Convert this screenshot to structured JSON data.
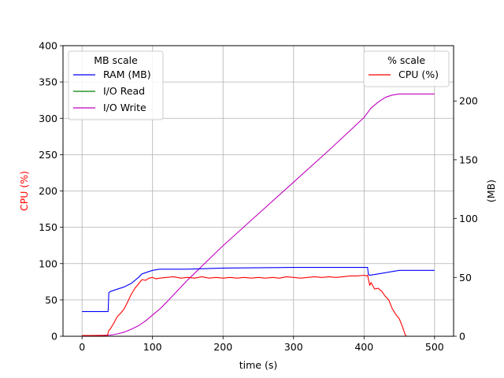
{
  "chart_data": {
    "type": "line",
    "title": "",
    "xlabel": "time (s)",
    "ylabel_left": "CPU (%)",
    "ylabel_right": "(MB)",
    "xlim": [
      -27,
      527
    ],
    "ylim_left": [
      0,
      400
    ],
    "ylim_right": [
      0,
      247
    ],
    "x_ticks": [
      0,
      100,
      200,
      300,
      400,
      500
    ],
    "y_left_ticks": [
      0,
      50,
      100,
      150,
      200,
      250,
      300,
      350,
      400
    ],
    "y_right_ticks": [
      0,
      50,
      100,
      150,
      200
    ],
    "grid": true,
    "colors": {
      "ram": "#0000ff",
      "io_read": "#008000",
      "io_write": "#bf00bf",
      "cpu": "#ff0000",
      "cpu_axis_label": "#ff0000"
    },
    "legends": [
      {
        "title": "MB scale",
        "placement": "upper-left",
        "entries": [
          {
            "label": "RAM (MB)",
            "series": "ram"
          },
          {
            "label": "I/O Read",
            "series": "io_read"
          },
          {
            "label": "I/O Write",
            "series": "io_write"
          }
        ]
      },
      {
        "title": "% scale",
        "placement": "upper-right",
        "entries": [
          {
            "label": "CPU (%)",
            "series": "cpu"
          }
        ]
      }
    ],
    "series": [
      {
        "name": "RAM (MB)",
        "key": "ram",
        "axis": "right",
        "x": [
          0,
          37,
          38,
          40,
          50,
          60,
          70,
          80,
          85,
          90,
          95,
          100,
          105,
          110,
          120,
          150,
          200,
          300,
          400,
          405,
          406,
          407,
          410,
          420,
          430,
          440,
          450,
          460,
          500
        ],
        "y": [
          21,
          21,
          37,
          38,
          40,
          42,
          45,
          50,
          53,
          54,
          55,
          56,
          56.5,
          57,
          57,
          57,
          58,
          58.5,
          58.5,
          58.5,
          53,
          52,
          52,
          53,
          54,
          55,
          56,
          56,
          56
        ]
      },
      {
        "name": "I/O Read",
        "key": "io_read",
        "axis": "right",
        "x": [
          0,
          500
        ],
        "y": [
          0,
          0
        ]
      },
      {
        "name": "I/O Write",
        "key": "io_write",
        "axis": "right",
        "x": [
          0,
          30,
          40,
          50,
          60,
          70,
          80,
          90,
          100,
          110,
          120,
          150,
          200,
          250,
          300,
          350,
          400,
          410,
          420,
          430,
          440,
          450,
          460,
          500
        ],
        "y": [
          0.5,
          0.8,
          1,
          2,
          3.5,
          6,
          9,
          13,
          18,
          23,
          29,
          48,
          77,
          104,
          131,
          158,
          186,
          194,
          199,
          203,
          205,
          206,
          206,
          206
        ]
      },
      {
        "name": "CPU (%)",
        "key": "cpu",
        "axis": "left",
        "x": [
          0,
          36,
          38,
          40,
          45,
          50,
          55,
          60,
          65,
          70,
          75,
          80,
          85,
          90,
          95,
          100,
          105,
          110,
          120,
          130,
          140,
          150,
          160,
          170,
          180,
          190,
          200,
          210,
          220,
          230,
          240,
          250,
          260,
          270,
          280,
          290,
          300,
          310,
          320,
          330,
          340,
          350,
          360,
          370,
          380,
          390,
          400,
          403,
          405,
          408,
          410,
          415,
          420,
          425,
          430,
          435,
          440,
          445,
          450,
          455,
          458,
          460,
          500
        ],
        "y": [
          1,
          1,
          8,
          10,
          18,
          27,
          32,
          38,
          48,
          58,
          66,
          72,
          78,
          77,
          80,
          81,
          79,
          80,
          81,
          82,
          80,
          81,
          80,
          82,
          80,
          81,
          80,
          81,
          80,
          81,
          80,
          81,
          80,
          81,
          80,
          82,
          81,
          80,
          81,
          82,
          81,
          82,
          81,
          82,
          83,
          83,
          84,
          83,
          84,
          70,
          74,
          65,
          66,
          62,
          55,
          50,
          38,
          30,
          24,
          12,
          3,
          0,
          0
        ]
      }
    ]
  }
}
